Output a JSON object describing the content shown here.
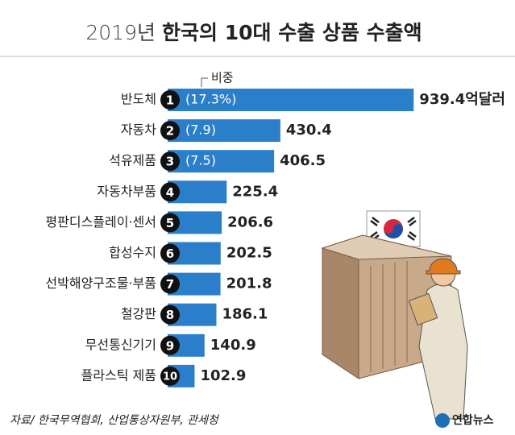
{
  "chart_data": {
    "type": "bar",
    "orientation": "horizontal",
    "title_year": "2019년",
    "title": "한국의 10대 수출 상품 수출액",
    "categories": [
      "반도체",
      "자동차",
      "석유제품",
      "자동차부품",
      "평판디스플레이·센서",
      "합성수지",
      "선박해양구조물·부품",
      "철강판",
      "무선통신기기",
      "플라스틱 제품"
    ],
    "ranks": [
      1,
      2,
      3,
      4,
      5,
      6,
      7,
      8,
      9,
      10
    ],
    "values": [
      939.4,
      430.4,
      406.5,
      225.4,
      206.6,
      202.5,
      201.8,
      186.1,
      140.9,
      102.9
    ],
    "value_labels": [
      "939.4억달러",
      "430.4",
      "406.5",
      "225.4",
      "206.6",
      "202.5",
      "201.8",
      "186.1",
      "140.9",
      "102.9"
    ],
    "share_label": "비중",
    "shares": [
      17.3,
      7.9,
      7.5,
      null,
      null,
      null,
      null,
      null,
      null,
      null
    ],
    "share_labels": [
      "(17.3%)",
      "(7.9)",
      "(7.5)",
      null,
      null,
      null,
      null,
      null,
      null,
      null
    ],
    "color": "#2b7fca",
    "xlim": [
      0,
      1000
    ],
    "source": "자료/ 한국무역협회, 산업통상자원부, 관세청",
    "logo": "연합뉴스"
  }
}
